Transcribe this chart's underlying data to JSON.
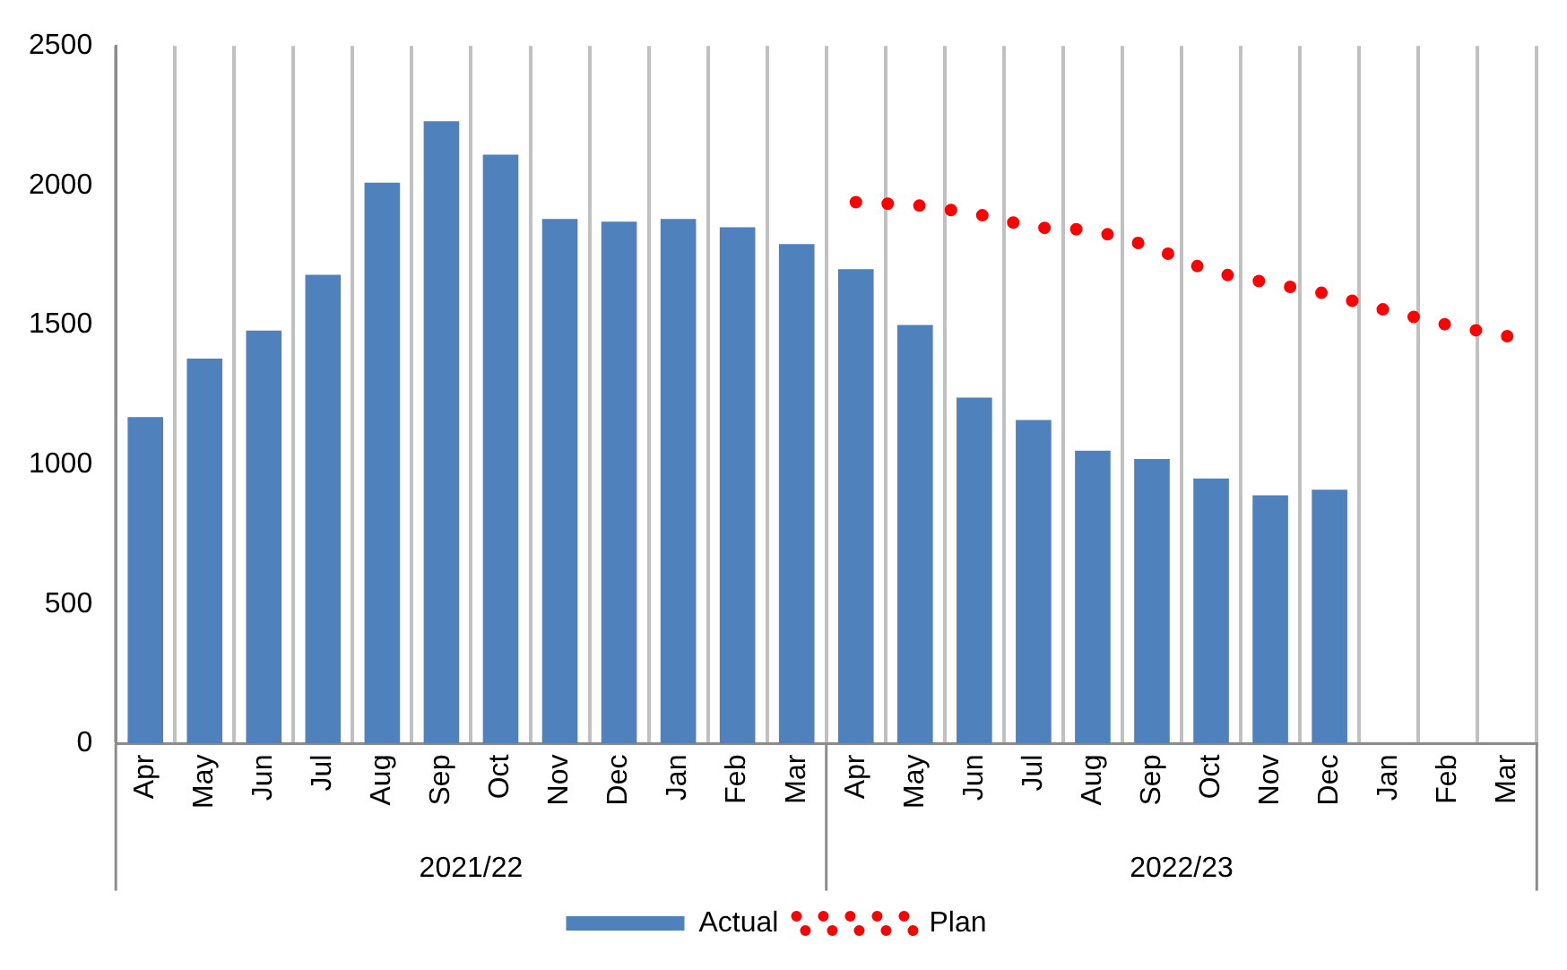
{
  "chart_data": {
    "type": "bar",
    "categories": [
      "Apr",
      "May",
      "Jun",
      "Jul",
      "Aug",
      "Sep",
      "Oct",
      "Nov",
      "Dec",
      "Jan",
      "Feb",
      "Mar",
      "Apr",
      "May",
      "Jun",
      "Jul",
      "Aug",
      "Sep",
      "Oct",
      "Nov",
      "Dec",
      "Jan",
      "Feb",
      "Mar"
    ],
    "series": [
      {
        "name": "Actual",
        "color": "#4f81bd",
        "values": [
          1170,
          1380,
          1480,
          1680,
          2010,
          2230,
          2110,
          1880,
          1870,
          1880,
          1850,
          1790,
          1700,
          1500,
          1240,
          1160,
          1050,
          1020,
          950,
          890,
          910,
          null,
          null,
          null
        ]
      },
      {
        "name": "Plan",
        "type": "line",
        "color": "#ff0000",
        "line_style": "dotted",
        "marker": "none",
        "values": [
          null,
          null,
          null,
          null,
          null,
          null,
          null,
          null,
          null,
          null,
          null,
          null,
          1940,
          1930,
          1900,
          1850,
          1840,
          1780,
          1690,
          1650,
          1610,
          1550,
          1500,
          1460
        ]
      }
    ],
    "annotations": [
      "2021/22",
      "2022/23"
    ],
    "ylim": [
      0,
      2500
    ],
    "yticks": [
      0,
      500,
      1000,
      1500,
      2000,
      2500
    ],
    "grid": "x",
    "legend": "bottom"
  }
}
